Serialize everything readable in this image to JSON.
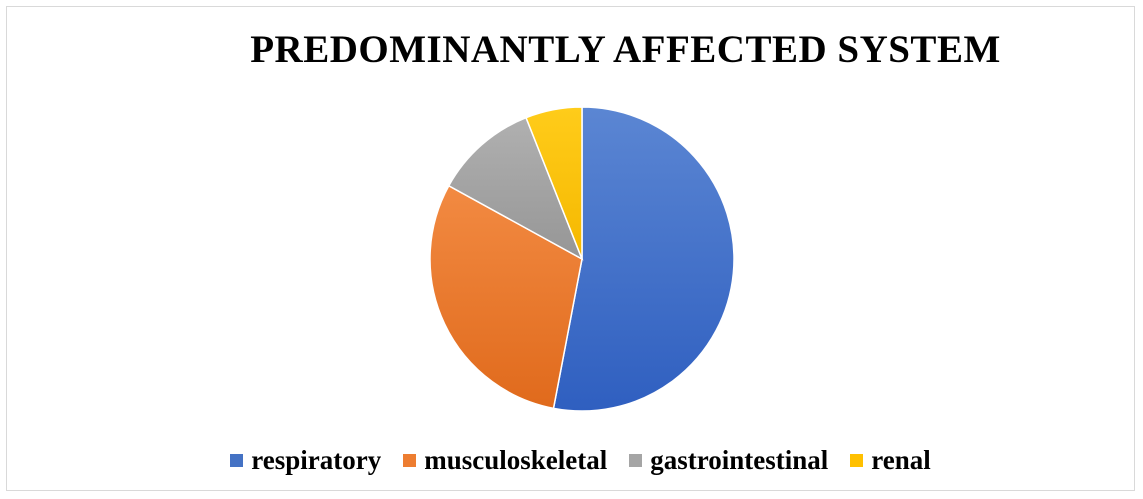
{
  "chart_data": {
    "type": "pie",
    "title": "PREDOMINANTLY AFFECTED SYSTEM",
    "categories": [
      "respiratory",
      "musculoskeletal",
      "gastrointestinal",
      "renal"
    ],
    "values": [
      53,
      30,
      11,
      6
    ],
    "colors": [
      "#4472c4",
      "#ed7d31",
      "#a5a5a5",
      "#ffc000"
    ],
    "legend_position": "bottom",
    "start_angle_deg": 0,
    "direction": "clockwise"
  }
}
